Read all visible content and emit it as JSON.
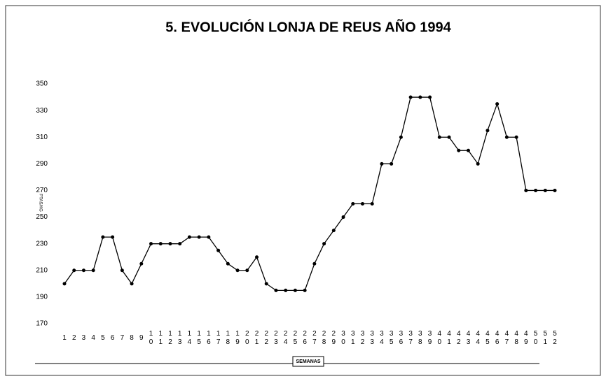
{
  "chart_data": {
    "type": "line",
    "title": "5. EVOLUCIÓN LONJA DE REUS AÑO 1994",
    "x_label": "SEMANAS",
    "y_label": "PTAS/KG",
    "categories": [
      "1",
      "2",
      "3",
      "4",
      "5",
      "6",
      "7",
      "8",
      "9",
      "10",
      "11",
      "12",
      "13",
      "14",
      "15",
      "16",
      "17",
      "18",
      "19",
      "20",
      "21",
      "22",
      "23",
      "24",
      "25",
      "26",
      "27",
      "28",
      "29",
      "30",
      "31",
      "32",
      "33",
      "34",
      "35",
      "36",
      "37",
      "38",
      "39",
      "40",
      "41",
      "42",
      "43",
      "44",
      "45",
      "46",
      "47",
      "48",
      "49",
      "50",
      "51",
      "52"
    ],
    "values": [
      200,
      210,
      210,
      210,
      235,
      235,
      210,
      200,
      215,
      230,
      230,
      230,
      230,
      235,
      235,
      235,
      225,
      215,
      210,
      210,
      220,
      200,
      195,
      195,
      195,
      195,
      215,
      230,
      240,
      250,
      260,
      260,
      260,
      290,
      290,
      310,
      340,
      340,
      340,
      310,
      310,
      300,
      300,
      290,
      315,
      335,
      310,
      310,
      270,
      270,
      270,
      270
    ],
    "color": "#000000",
    "ylim": [
      170,
      350
    ],
    "yticks": [
      170,
      190,
      210,
      230,
      250,
      270,
      290,
      310,
      330,
      350
    ],
    "grid": false
  }
}
